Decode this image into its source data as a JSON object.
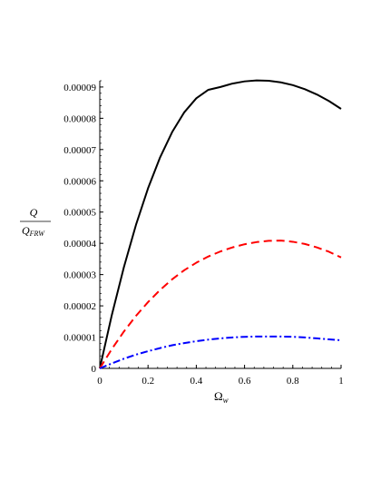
{
  "chart_data": {
    "type": "line",
    "title": "",
    "xlabel": {
      "main": "Ω",
      "sub": "w"
    },
    "ylabel": {
      "numerator": "Q",
      "denominator": "Q",
      "denominator_sub": "FRW"
    },
    "xlim": [
      0,
      1
    ],
    "ylim": [
      0,
      9.2e-05
    ],
    "xticks": [
      0,
      0.2,
      0.4,
      0.6,
      0.8,
      1
    ],
    "xtick_labels": [
      "0",
      "0.2",
      "0.4",
      "0.6",
      "0.8",
      "1"
    ],
    "yticks": [
      0,
      1e-05,
      2e-05,
      3e-05,
      4e-05,
      5e-05,
      6e-05,
      7e-05,
      8e-05,
      9e-05
    ],
    "ytick_labels": [
      "0",
      "0.00001",
      "0.00002",
      "0.00003",
      "0.00004",
      "0.00005",
      "0.00006",
      "0.00007",
      "0.00008",
      "0.00009"
    ],
    "grid": false,
    "legend": "none",
    "x": [
      0,
      0.05,
      0.1,
      0.15,
      0.2,
      0.25,
      0.3,
      0.35,
      0.4,
      0.45,
      0.5,
      0.55,
      0.6,
      0.65,
      0.7,
      0.75,
      0.8,
      0.85,
      0.9,
      0.95,
      1
    ],
    "series": [
      {
        "color": "#000000",
        "dash": "solid",
        "values": [
          0,
          1.71e-05,
          3.24e-05,
          4.59e-05,
          5.76e-05,
          6.75e-05,
          7.56e-05,
          8.19e-05,
          8.64e-05,
          8.91e-05,
          9e-05,
          9.11e-05,
          9.18e-05,
          9.21e-05,
          9.2e-05,
          9.15e-05,
          9.06e-05,
          8.93e-05,
          8.76e-05,
          8.55e-05,
          8.3e-05
        ]
      },
      {
        "color": "#ff0000",
        "dash": "dashed",
        "values": [
          0,
          6.2e-06,
          1.18e-05,
          1.68e-05,
          2.12e-05,
          2.51e-05,
          2.85e-05,
          3.14e-05,
          3.38e-05,
          3.58e-05,
          3.74e-05,
          3.87e-05,
          3.97e-05,
          4.04e-05,
          4.08e-05,
          4.09e-05,
          4.05e-05,
          3.98e-05,
          3.87e-05,
          3.73e-05,
          3.55e-05
        ]
      },
      {
        "color": "#0000ff",
        "dash": "dashdot",
        "values": [
          0,
          1.6e-06,
          3.1e-06,
          4.4e-06,
          5.5e-06,
          6.5e-06,
          7.4e-06,
          8.1e-06,
          8.7e-06,
          9.2e-06,
          9.6e-06,
          9.9e-06,
          1.01e-05,
          1.02e-05,
          1.02e-05,
          1.02e-05,
          1.01e-05,
          9.9e-06,
          9.6e-06,
          9.3e-06,
          9e-06
        ]
      }
    ]
  }
}
